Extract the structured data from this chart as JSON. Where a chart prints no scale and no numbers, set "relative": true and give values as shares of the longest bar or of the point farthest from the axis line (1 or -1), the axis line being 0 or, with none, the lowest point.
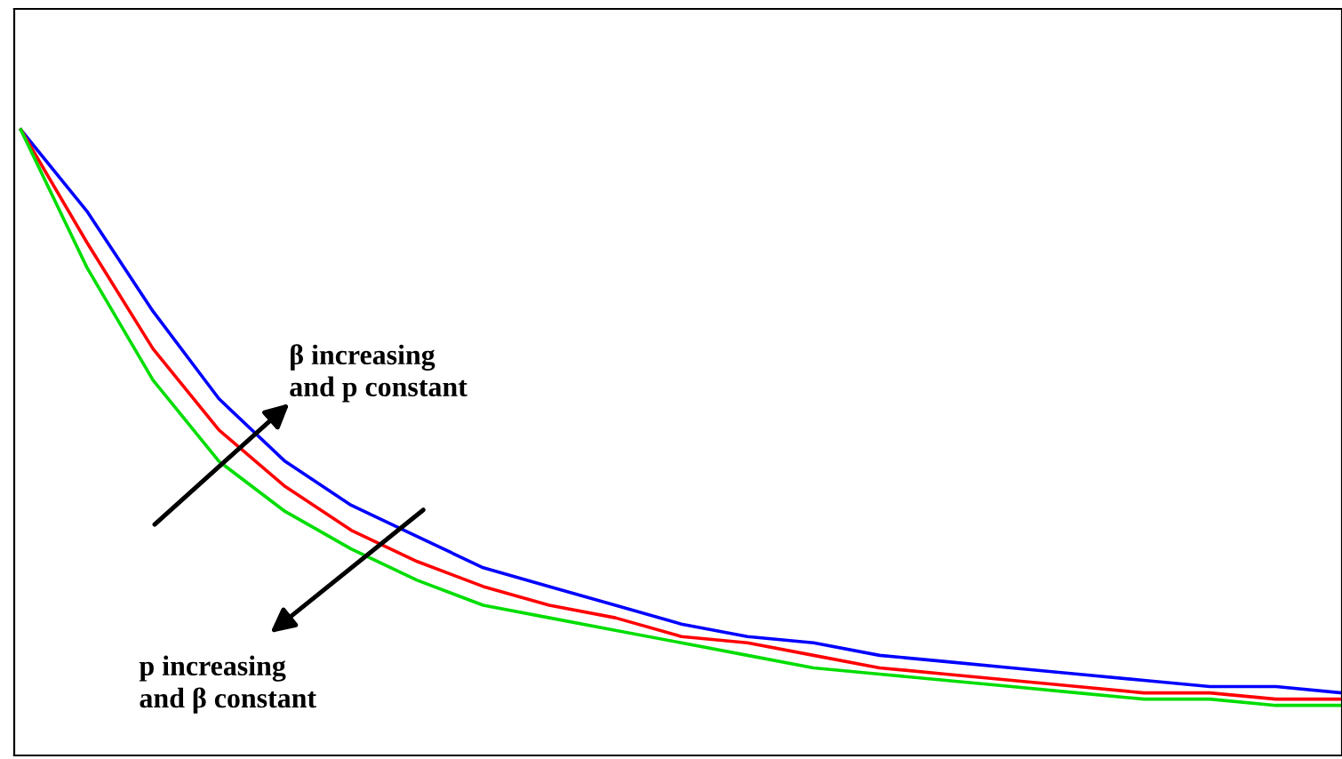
{
  "chart_data": {
    "type": "line",
    "relative": true,
    "grid": false,
    "legend": false,
    "marker": "none",
    "line_style": "solid",
    "categories": [
      null,
      null,
      null,
      null,
      null,
      null,
      null,
      null,
      null,
      null,
      null,
      null,
      null,
      null,
      null,
      null,
      null,
      null,
      null,
      null,
      null
    ],
    "series": [
      {
        "color": "#0000ff",
        "values": [
          1.0,
          0.87,
          0.71,
          0.57,
          0.47,
          0.4,
          0.35,
          0.3,
          0.27,
          0.24,
          0.21,
          0.19,
          0.18,
          0.16,
          0.15,
          0.14,
          0.13,
          0.12,
          0.11,
          0.11,
          0.1
        ]
      },
      {
        "color": "#ff0000",
        "values": [
          1.0,
          0.82,
          0.65,
          0.52,
          0.43,
          0.36,
          0.31,
          0.27,
          0.24,
          0.22,
          0.19,
          0.18,
          0.16,
          0.14,
          0.13,
          0.12,
          0.11,
          0.1,
          0.1,
          0.09,
          0.09
        ]
      },
      {
        "color": "#00dd00",
        "values": [
          1.0,
          0.78,
          0.6,
          0.47,
          0.39,
          0.33,
          0.28,
          0.24,
          0.22,
          0.2,
          0.18,
          0.16,
          0.14,
          0.13,
          0.12,
          0.11,
          0.1,
          0.09,
          0.09,
          0.08,
          0.08
        ]
      }
    ],
    "annotations": [
      "β increasing\nand p constant",
      "p increasing\nand β constant"
    ]
  }
}
